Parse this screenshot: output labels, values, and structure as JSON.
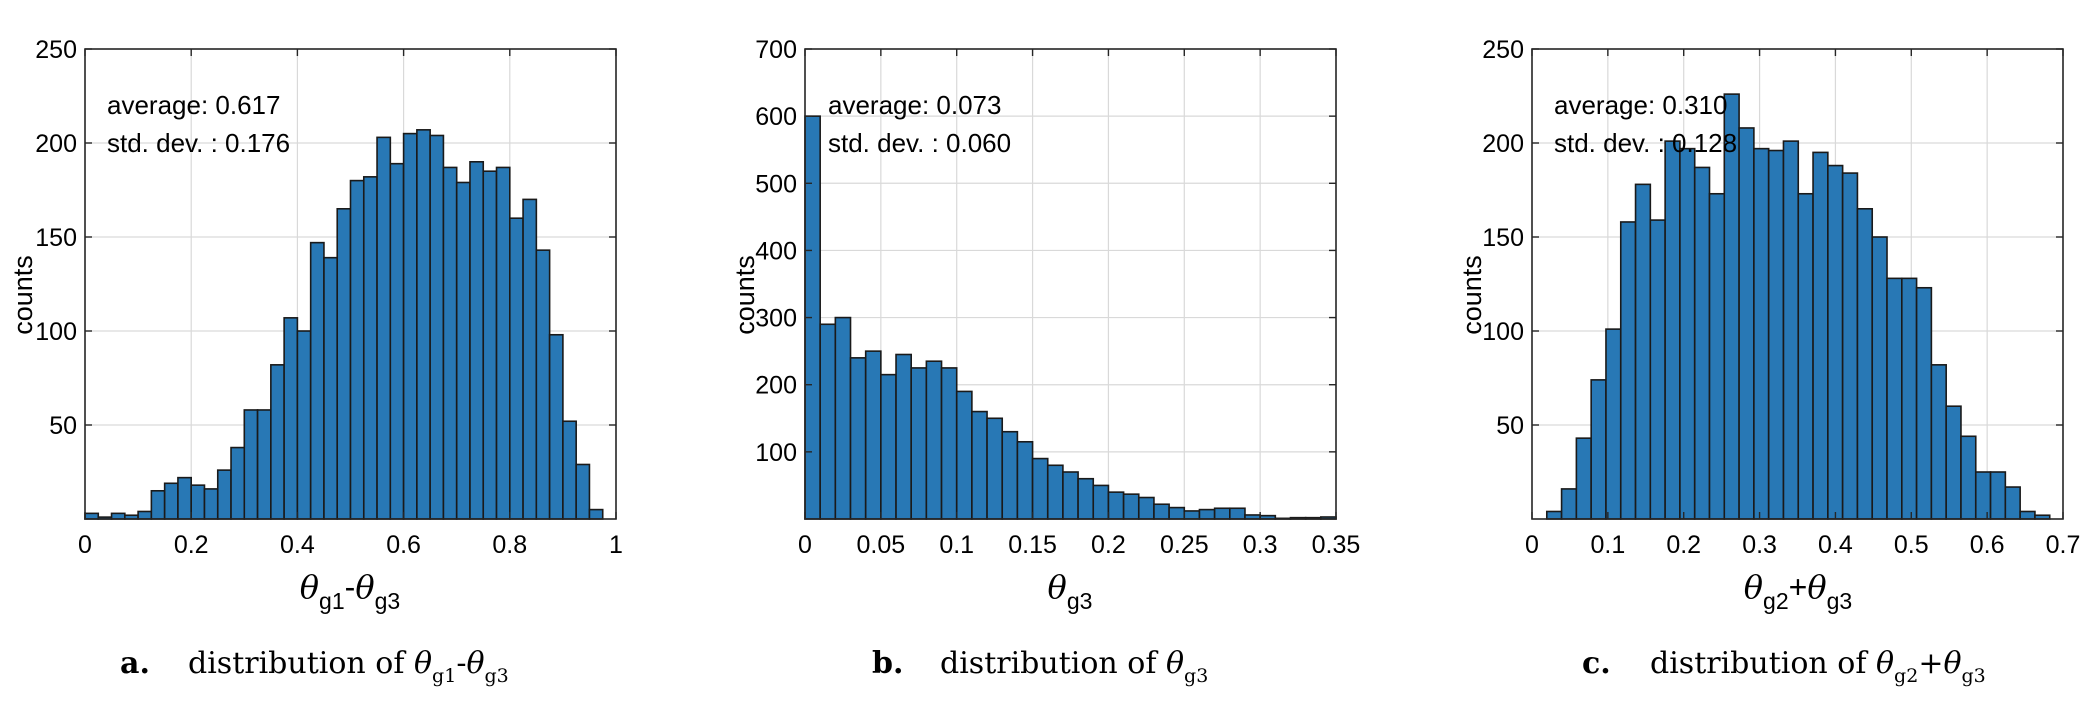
{
  "style": {
    "bar_fill": "#2878b5",
    "bar_stroke": "#1a1a1a",
    "grid_color": "#d9d9d9",
    "axis_color": "#262626"
  },
  "chart_data": [
    {
      "type": "bar",
      "histogram": true,
      "title": "",
      "xlabel": "θg1-θg3",
      "ylabel": "counts",
      "xlim": [
        0,
        1
      ],
      "ylim": [
        0,
        250
      ],
      "grid": true,
      "xticks": [
        0,
        0.2,
        0.4,
        0.6,
        0.8,
        1
      ],
      "xtick_labels": [
        "0",
        "0.2",
        "0.4",
        "0.6",
        "0.8",
        "1"
      ],
      "yticks": [
        50,
        100,
        150,
        200,
        250
      ],
      "ytick_labels": [
        "50",
        "100",
        "150",
        "200",
        "250"
      ],
      "bin_width": 0.025,
      "bin_start": 0,
      "values": [
        3,
        1,
        3,
        2,
        4,
        15,
        19,
        22,
        18,
        16,
        26,
        38,
        58,
        58,
        82,
        107,
        100,
        147,
        139,
        165,
        180,
        182,
        203,
        189,
        205,
        207,
        204,
        187,
        179,
        190,
        185,
        187,
        160,
        170,
        143,
        98,
        52,
        29,
        5
      ],
      "stats": {
        "average_label": "average: 0.617",
        "std_label": "std. dev. : 0.176"
      },
      "caption": {
        "letter": "a.",
        "text": "distribution of θg1-θg3"
      }
    },
    {
      "type": "bar",
      "histogram": true,
      "title": "",
      "xlabel": "θg3",
      "ylabel": "counts",
      "xlim": [
        0,
        0.35
      ],
      "ylim": [
        0,
        700
      ],
      "grid": true,
      "xticks": [
        0,
        0.05,
        0.1,
        0.15,
        0.2,
        0.25,
        0.3,
        0.35
      ],
      "xtick_labels": [
        "0",
        "0.05",
        "0.1",
        "0.15",
        "0.2",
        "0.25",
        "0.3",
        "0.35"
      ],
      "yticks": [
        100,
        200,
        300,
        400,
        500,
        600,
        700
      ],
      "ytick_labels": [
        "100",
        "200",
        "300",
        "400",
        "500",
        "600",
        "700"
      ],
      "bin_width": 0.01,
      "bin_start": 0,
      "values": [
        600,
        290,
        300,
        240,
        250,
        215,
        245,
        225,
        235,
        225,
        190,
        160,
        150,
        130,
        115,
        90,
        80,
        70,
        60,
        50,
        40,
        37,
        32,
        22,
        17,
        12,
        14,
        16,
        16,
        6,
        5,
        1,
        2,
        2,
        3
      ],
      "stats": {
        "average_label": "average: 0.073",
        "std_label": "std. dev. : 0.060"
      },
      "caption": {
        "letter": "b.",
        "text": "distribution of θg3"
      }
    },
    {
      "type": "bar",
      "histogram": true,
      "title": "",
      "xlabel": "θg2+θg3",
      "ylabel": "counts",
      "xlim": [
        0,
        0.7
      ],
      "ylim": [
        0,
        250
      ],
      "grid": true,
      "xticks": [
        0,
        0.1,
        0.2,
        0.3,
        0.4,
        0.5,
        0.6,
        0.7
      ],
      "xtick_labels": [
        "0",
        "0.1",
        "0.2",
        "0.3",
        "0.4",
        "0.5",
        "0.6",
        "0.7"
      ],
      "yticks": [
        50,
        100,
        150,
        200,
        250
      ],
      "ytick_labels": [
        "50",
        "100",
        "150",
        "200",
        "250"
      ],
      "bin_width": 0.0195,
      "bin_start": 0.0195,
      "values": [
        4,
        16,
        43,
        74,
        101,
        158,
        178,
        159,
        201,
        197,
        187,
        173,
        226,
        208,
        197,
        196,
        201,
        173,
        195,
        188,
        184,
        165,
        150,
        128,
        128,
        123,
        82,
        60,
        44,
        25,
        25,
        17,
        4,
        2
      ],
      "stats": {
        "average_label": "average: 0.310",
        "std_label": "std. dev. : 0.128"
      },
      "caption": {
        "letter": "c.",
        "text": "distribution of θg2+θg3"
      }
    }
  ]
}
